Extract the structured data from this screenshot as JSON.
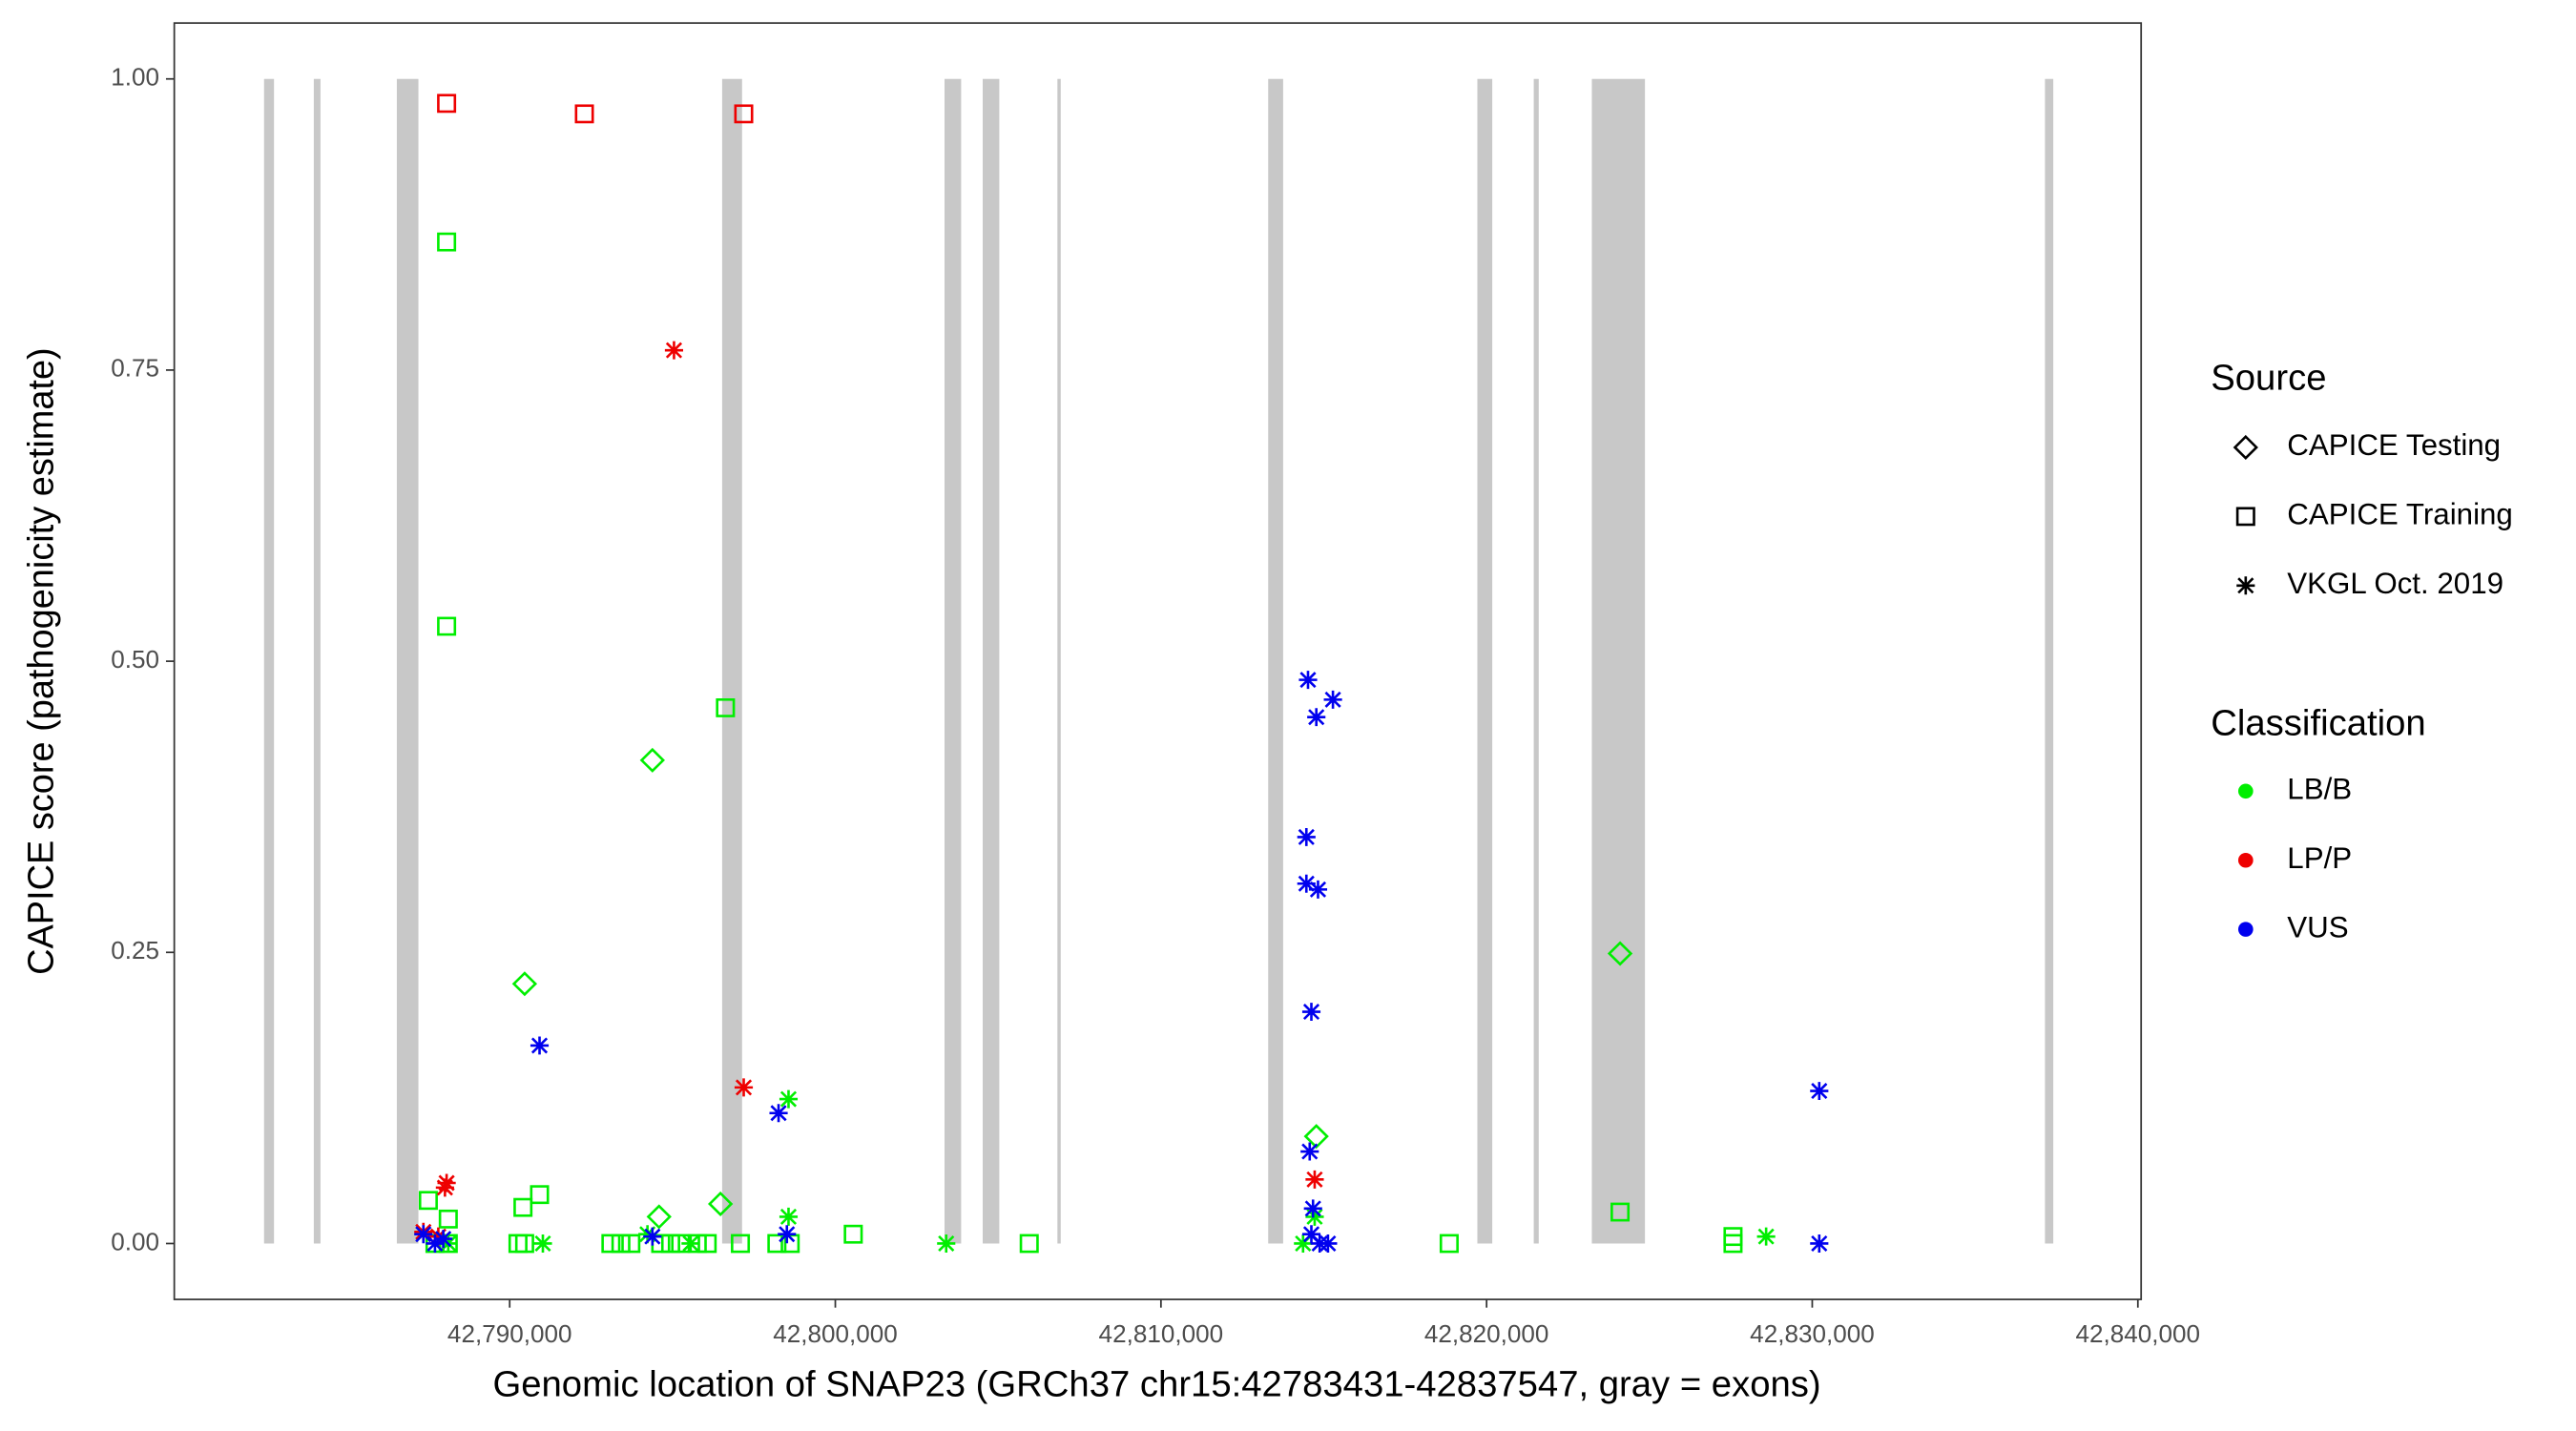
{
  "chart_data": {
    "type": "scatter",
    "x_label": "Genomic location of SNAP23 (GRCh37 chr15:42783431-42837547, gray = exons)",
    "y_label": "CAPICE score (pathogenicity estimate)",
    "xlim": [
      42779700,
      42840100
    ],
    "ylim": [
      -0.048,
      1.048
    ],
    "xticks": [
      {
        "value": 42790000,
        "label": "42,790,000"
      },
      {
        "value": 42800000,
        "label": "42,800,000"
      },
      {
        "value": 42810000,
        "label": "42,810,000"
      },
      {
        "value": 42820000,
        "label": "42,820,000"
      },
      {
        "value": 42830000,
        "label": "42,830,000"
      },
      {
        "value": 42840000,
        "label": "42,840,000"
      }
    ],
    "yticks": [
      {
        "value": 0,
        "label": "0.00"
      },
      {
        "value": 0.25,
        "label": "0.25"
      },
      {
        "value": 0.5,
        "label": "0.50"
      },
      {
        "value": 0.75,
        "label": "0.75"
      },
      {
        "value": 1,
        "label": "1.00"
      }
    ],
    "exon_color": "#c8c8c8",
    "exons": [
      [
        42782457,
        42782762
      ],
      [
        42783985,
        42784190
      ],
      [
        42786534,
        42787197
      ],
      [
        42796524,
        42797136
      ],
      [
        42803354,
        42803864
      ],
      [
        42804526,
        42805036
      ],
      [
        42806820,
        42806922
      ],
      [
        42813293,
        42813752
      ],
      [
        42819716,
        42820174
      ],
      [
        42821448,
        42821601
      ],
      [
        42823232,
        42824863
      ],
      [
        42837147,
        42837402
      ]
    ],
    "legend": {
      "source_title": "Source",
      "sources": [
        {
          "name": "CAPICE Testing",
          "shape": "diamond"
        },
        {
          "name": "CAPICE Training",
          "shape": "square"
        },
        {
          "name": "VKGL Oct. 2019",
          "shape": "asterisk"
        }
      ],
      "classification_title": "Classification",
      "classifications": [
        {
          "name": "LB/B",
          "color": "#00ee00"
        },
        {
          "name": "LP/P",
          "color": "#ee0000"
        },
        {
          "name": "VUS",
          "color": "#0000ee"
        }
      ]
    },
    "series": [
      {
        "source": 1,
        "classification": 1,
        "x": [
          42788063,
          42792294,
          42797187
        ],
        "values": [
          0.979,
          0.97,
          0.97
        ]
      },
      {
        "source": 1,
        "classification": 0,
        "x": [
          42788063,
          42788063,
          42796626,
          42787502,
          42788114,
          42790408,
          42790917,
          42800551,
          42787706,
          42788114,
          42790255,
          42790459,
          42793109,
          42793415,
          42793721,
          42794638,
          42794944,
          42795250,
          42795760,
          42796065,
          42797085,
          42798206,
          42798614,
          42805954,
          42818851,
          42827567,
          42824099,
          42827567
        ],
        "values": [
          0.86,
          0.53,
          0.46,
          0.037,
          0.021,
          0.031,
          0.042,
          0.008,
          0,
          0,
          0,
          0,
          0,
          0,
          0,
          0,
          0,
          0,
          0,
          0,
          0,
          0,
          0,
          0,
          0,
          0,
          0.027,
          0.006
        ]
      },
      {
        "source": 0,
        "classification": 0,
        "x": [
          42790459,
          42794383,
          42794587,
          42796473,
          42814771,
          42824099
        ],
        "values": [
          0.223,
          0.415,
          0.023,
          0.034,
          0.092,
          0.249
        ]
      },
      {
        "source": 2,
        "classification": 1,
        "x": [
          42795046,
          42797187,
          42788063,
          42788012,
          42787808,
          42814720,
          42787350
        ],
        "values": [
          0.767,
          0.134,
          0.052,
          0.048,
          0.006,
          0.055,
          0.01
        ]
      },
      {
        "source": 2,
        "classification": 0,
        "x": [
          42798563,
          42798563,
          42791019,
          42794231,
          42795556,
          42803405,
          42814364,
          42814720,
          42828584,
          42788114
        ],
        "values": [
          0.124,
          0.023,
          0,
          0.008,
          0,
          0,
          0,
          0.023,
          0.006,
          0
        ]
      },
      {
        "source": 2,
        "classification": 2,
        "x": [
          42790917,
          42798257,
          42798512,
          42794383,
          42814516,
          42814771,
          42815281,
          42814466,
          42814466,
          42814823,
          42814619,
          42814568,
          42814670,
          42814619,
          42814874,
          42815129,
          42830215,
          42830215,
          42787350,
          42787706,
          42787961
        ],
        "values": [
          0.17,
          0.112,
          0.008,
          0.006,
          0.484,
          0.452,
          0.467,
          0.349,
          0.309,
          0.304,
          0.199,
          0.079,
          0.03,
          0.008,
          0,
          0,
          0.131,
          0,
          0.008,
          0,
          0.004
        ]
      }
    ]
  }
}
